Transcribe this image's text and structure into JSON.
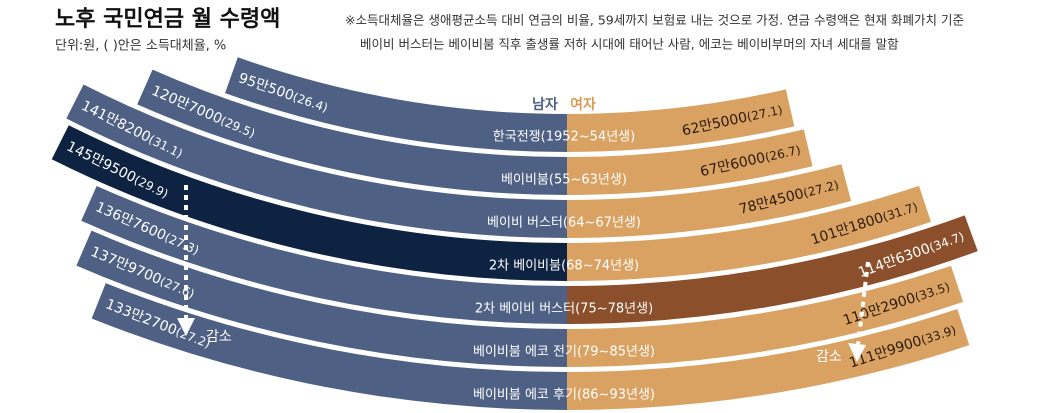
{
  "chart_data": {
    "type": "curved-bar",
    "title": "노후 국민연금 월 수령액",
    "subtitle": "단위:원, ( )안은 소득대체율, %",
    "notes": [
      "※소득대체율은 생애평균소득 대비 연금의 비율, 59세까지 보험료 내는 것으로 가정. 연금 수령액은 현재 화폐가치 기준",
      "베이비 버스터는 베이비붐 직후 출생률 저하 시대에 태어난 사람, 에코는 베이비부머의 자녀 세대를 말함"
    ],
    "categories": [
      "한국전쟁(1952~54년생)",
      "베이비붐(55~63년생)",
      "베이비 버스터(64~67년생)",
      "2차 베이비붐(68~74년생)",
      "2차 베이비 버스터(75~78년생)",
      "베이비붐 에코 전기(79~85년생)",
      "베이비붐 에코 후기(86~93년생)"
    ],
    "series": [
      {
        "name": "남자",
        "color": "#4e6184",
        "colors": [
          "#4e6184",
          "#4e6184",
          "#4e6184",
          "#0d2341",
          "#4e6184",
          "#4e6184",
          "#4e6184"
        ],
        "values": [
          950500,
          1207000,
          1418200,
          1459500,
          1367600,
          1379700,
          1332700
        ],
        "value_labels": [
          "95만500",
          "120만7000",
          "141만8200",
          "145만9500",
          "136만7600",
          "137만9700",
          "133만2700"
        ],
        "ratios": [
          26.4,
          29.5,
          31.1,
          29.9,
          27.3,
          27.6,
          27.2
        ],
        "ratio_labels": [
          "(26.4)",
          "(29.5)",
          "(31.1)",
          "(29.9)",
          "(27.3)",
          "(27.6)",
          "(27.2)"
        ]
      },
      {
        "name": "여자",
        "color": "#d99a55",
        "colors": [
          "#d9a262",
          "#d9a262",
          "#d9a262",
          "#d9a262",
          "#8c4f2b",
          "#d9a262",
          "#d9a262"
        ],
        "values": [
          625000,
          676000,
          784500,
          1011800,
          1146300,
          1102900,
          1119900
        ],
        "value_labels": [
          "62만5000",
          "67만6000",
          "78만4500",
          "101만1800",
          "114만6300",
          "110만2900",
          "111만9900"
        ],
        "ratios": [
          27.1,
          26.7,
          27.2,
          31.7,
          34.7,
          33.5,
          33.9
        ],
        "ratio_labels": [
          "(27.1)",
          "(26.7)",
          "(27.2)",
          "(31.7)",
          "(34.7)",
          "(33.5)",
          "(33.9)"
        ]
      }
    ],
    "annotations": [
      "감소",
      "감소"
    ]
  }
}
